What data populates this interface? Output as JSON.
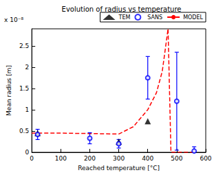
{
  "chart_data": {
    "type": "scatter",
    "title": "Evolution of radius vs temperature",
    "x_label": "Reached temperature [°C]",
    "y_label": "Mean radius [m]",
    "y_multiplier": "x 10⁻⁸",
    "xlim": [
      0,
      600
    ],
    "xticks": [
      0,
      100,
      200,
      300,
      400,
      500,
      600
    ],
    "ylim": [
      0,
      2.9
    ],
    "yticks": [
      0,
      0.5,
      1,
      1.5,
      2,
      2.5
    ],
    "grid": false,
    "legend": "upper right",
    "series": [
      {
        "name": "TEM",
        "type": "scatter",
        "marker": "triangle",
        "color": "#000000",
        "x": [
          20,
          300,
          400
        ],
        "values": [
          0.45,
          0.25,
          0.73
        ]
      },
      {
        "name": "SANS",
        "type": "scatter",
        "marker": "open_circle",
        "color": "#0000ff",
        "x": [
          20,
          200,
          300,
          400,
          500,
          560
        ],
        "values": [
          0.42,
          0.33,
          0.2,
          1.75,
          1.2,
          0.03
        ],
        "errors": [
          0.12,
          0.13,
          0.1,
          0.5,
          1.15,
          0.1
        ]
      },
      {
        "name": "MODEL",
        "type": "line",
        "line_style": "dashed",
        "color": "#ff0000",
        "x": [
          0,
          100,
          200,
          300,
          350,
          400,
          430,
          450,
          470,
          480,
          560
        ],
        "values": [
          0.45,
          0.45,
          0.44,
          0.43,
          0.6,
          1.0,
          1.4,
          1.9,
          2.9,
          0,
          0
        ]
      }
    ]
  }
}
